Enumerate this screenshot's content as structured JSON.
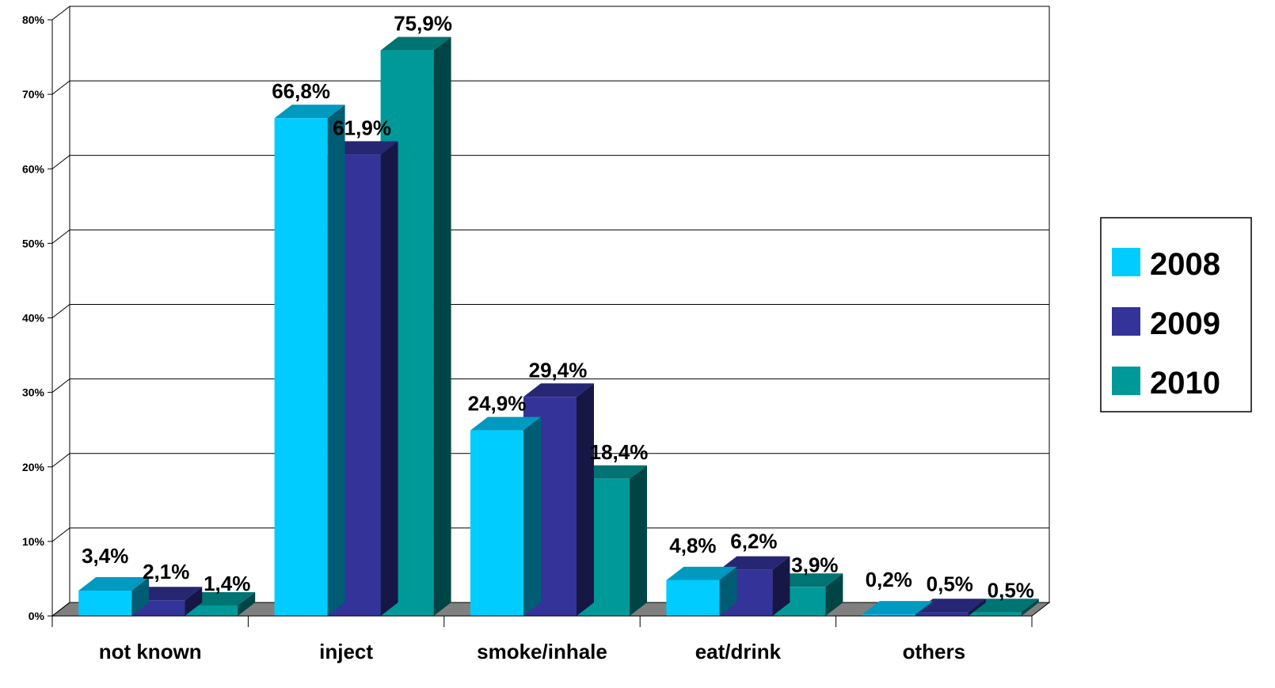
{
  "chart_data": {
    "type": "bar",
    "title": "",
    "xlabel": "",
    "ylabel": "",
    "categories": [
      "not known",
      "inject",
      "smoke/inhale",
      "eat/drink",
      "others"
    ],
    "ylim": [
      0,
      80
    ],
    "yticks": [
      0,
      10,
      20,
      30,
      40,
      50,
      60,
      70,
      80
    ],
    "ytick_labels": [
      "0%",
      "10%",
      "20%",
      "30%",
      "40%",
      "50%",
      "60%",
      "70%",
      "80%"
    ],
    "grid": true,
    "legend_position": "right",
    "series": [
      {
        "name": "2008",
        "color": "#00CCFF",
        "values": [
          3.4,
          66.8,
          24.9,
          4.8,
          0.2
        ],
        "labels": [
          "3,4%",
          "66,8%",
          "24,9%",
          "4,8%",
          "0,2%"
        ]
      },
      {
        "name": "2009",
        "color": "#333399",
        "values": [
          2.1,
          61.9,
          29.4,
          6.2,
          0.5
        ],
        "labels": [
          "2,1%",
          "61,9%",
          "29,4%",
          "6,2%",
          "0,5%"
        ]
      },
      {
        "name": "2010",
        "color": "#009999",
        "values": [
          1.4,
          75.9,
          18.4,
          3.9,
          0.5
        ],
        "labels": [
          "1,4%",
          "75,9%",
          "18,4%",
          "3,9%",
          "0,5%"
        ]
      }
    ]
  }
}
